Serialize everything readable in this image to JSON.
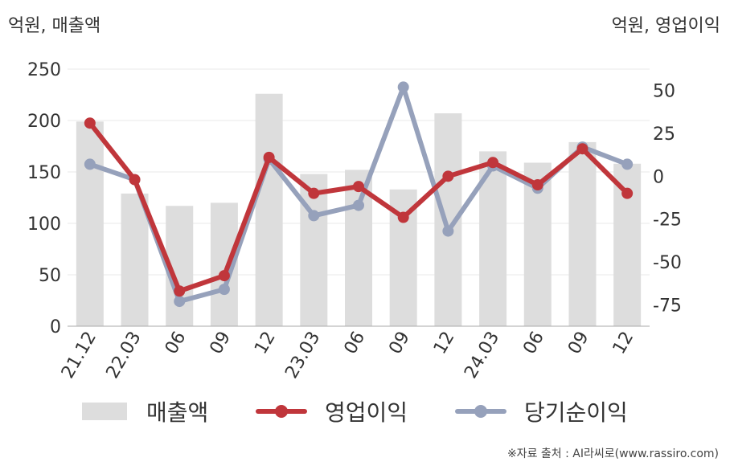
{
  "chart_data": {
    "type": "bar+line",
    "categories": [
      "21.12",
      "22.03",
      "06",
      "09",
      "12",
      "23.03",
      "06",
      "09",
      "12",
      "24.03",
      "06",
      "09",
      "12"
    ],
    "left_axis": {
      "label": "억원, 매출액",
      "range": [
        0,
        250
      ],
      "ticks": [
        0,
        50,
        100,
        150,
        200,
        250
      ]
    },
    "right_axis": {
      "label": "억원, 영업이익",
      "range": [
        -87.5,
        62.5
      ],
      "ticks": [
        -75,
        -50,
        -25,
        0,
        25,
        50
      ]
    },
    "series": [
      {
        "name": "매출액",
        "type": "bar",
        "axis": "left",
        "color": "#dddddd",
        "values": [
          199,
          129,
          117,
          120,
          226,
          148,
          152,
          133,
          207,
          170,
          159,
          179,
          158
        ]
      },
      {
        "name": "영업이익",
        "type": "line",
        "axis": "right",
        "color": "#c0363b",
        "values": [
          31,
          -2,
          -67,
          -58,
          11,
          -10,
          -6,
          -24,
          0,
          8,
          -5,
          16,
          -10
        ]
      },
      {
        "name": "당기순이익",
        "type": "line",
        "axis": "right",
        "color": "#96a1bb",
        "values": [
          7,
          -2,
          -73,
          -66,
          10,
          -23,
          -17,
          52,
          -32,
          6,
          -7,
          17,
          7
        ]
      }
    ],
    "grid": true,
    "legend_position": "bottom"
  },
  "source_text": "※자료 출처 : AI라씨로(www.rassiro.com)"
}
